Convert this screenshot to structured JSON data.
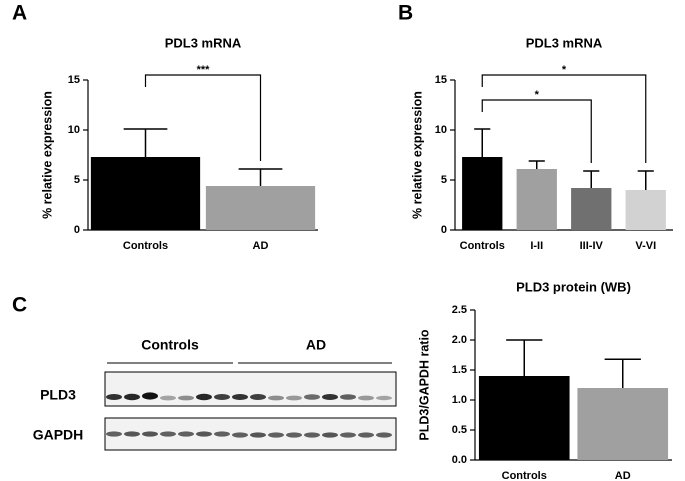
{
  "panel_labels": [
    "A",
    "B",
    "C"
  ],
  "blot": {
    "group_labels": [
      "Controls",
      "AD"
    ],
    "row_labels": [
      "PLD3",
      "GAPDH"
    ]
  },
  "chart_data": [
    {
      "type": "bar",
      "title": "PDL3 mRNA",
      "y_label": "% relative expression",
      "categories": [
        "Controls",
        "AD"
      ],
      "values": [
        7.3,
        4.4
      ],
      "errors": [
        2.8,
        1.7
      ],
      "colors": [
        "#000000",
        "#a0a0a0"
      ],
      "ylim": [
        0,
        15
      ],
      "yticks": [
        0,
        5,
        10,
        15
      ],
      "brackets": [
        {
          "text": "***",
          "between": [
            0,
            1
          ]
        }
      ]
    },
    {
      "type": "bar",
      "title": "PDL3 mRNA",
      "y_label": "% relative expression",
      "categories": [
        "Controls",
        "I-II",
        "III-IV",
        "V-VI"
      ],
      "values": [
        7.3,
        6.1,
        4.2,
        4.0
      ],
      "errors": [
        2.8,
        0.8,
        1.7,
        1.9
      ],
      "colors": [
        "#000000",
        "#a0a0a0",
        "#707070",
        "#d2d2d2"
      ],
      "ylim": [
        0,
        15
      ],
      "yticks": [
        0,
        5,
        10,
        15
      ],
      "brackets": [
        {
          "text": "*",
          "between": [
            0,
            3
          ]
        },
        {
          "text": "*",
          "between": [
            0,
            2
          ]
        }
      ]
    },
    {
      "type": "bar",
      "title": "PLD3 protein (WB)",
      "y_label": "PLD3/GAPDH ratio",
      "categories": [
        "Controls",
        "AD"
      ],
      "values": [
        1.4,
        1.2
      ],
      "errors": [
        0.6,
        0.48
      ],
      "colors": [
        "#000000",
        "#a0a0a0"
      ],
      "ylim": [
        0,
        2.5
      ],
      "yticks": [
        {
          "value": 0,
          "label": "0.0"
        },
        0.5,
        {
          "value": 1,
          "label": "1.0"
        },
        1.5,
        {
          "value": 2,
          "label": "2.0"
        },
        2.5
      ]
    }
  ]
}
